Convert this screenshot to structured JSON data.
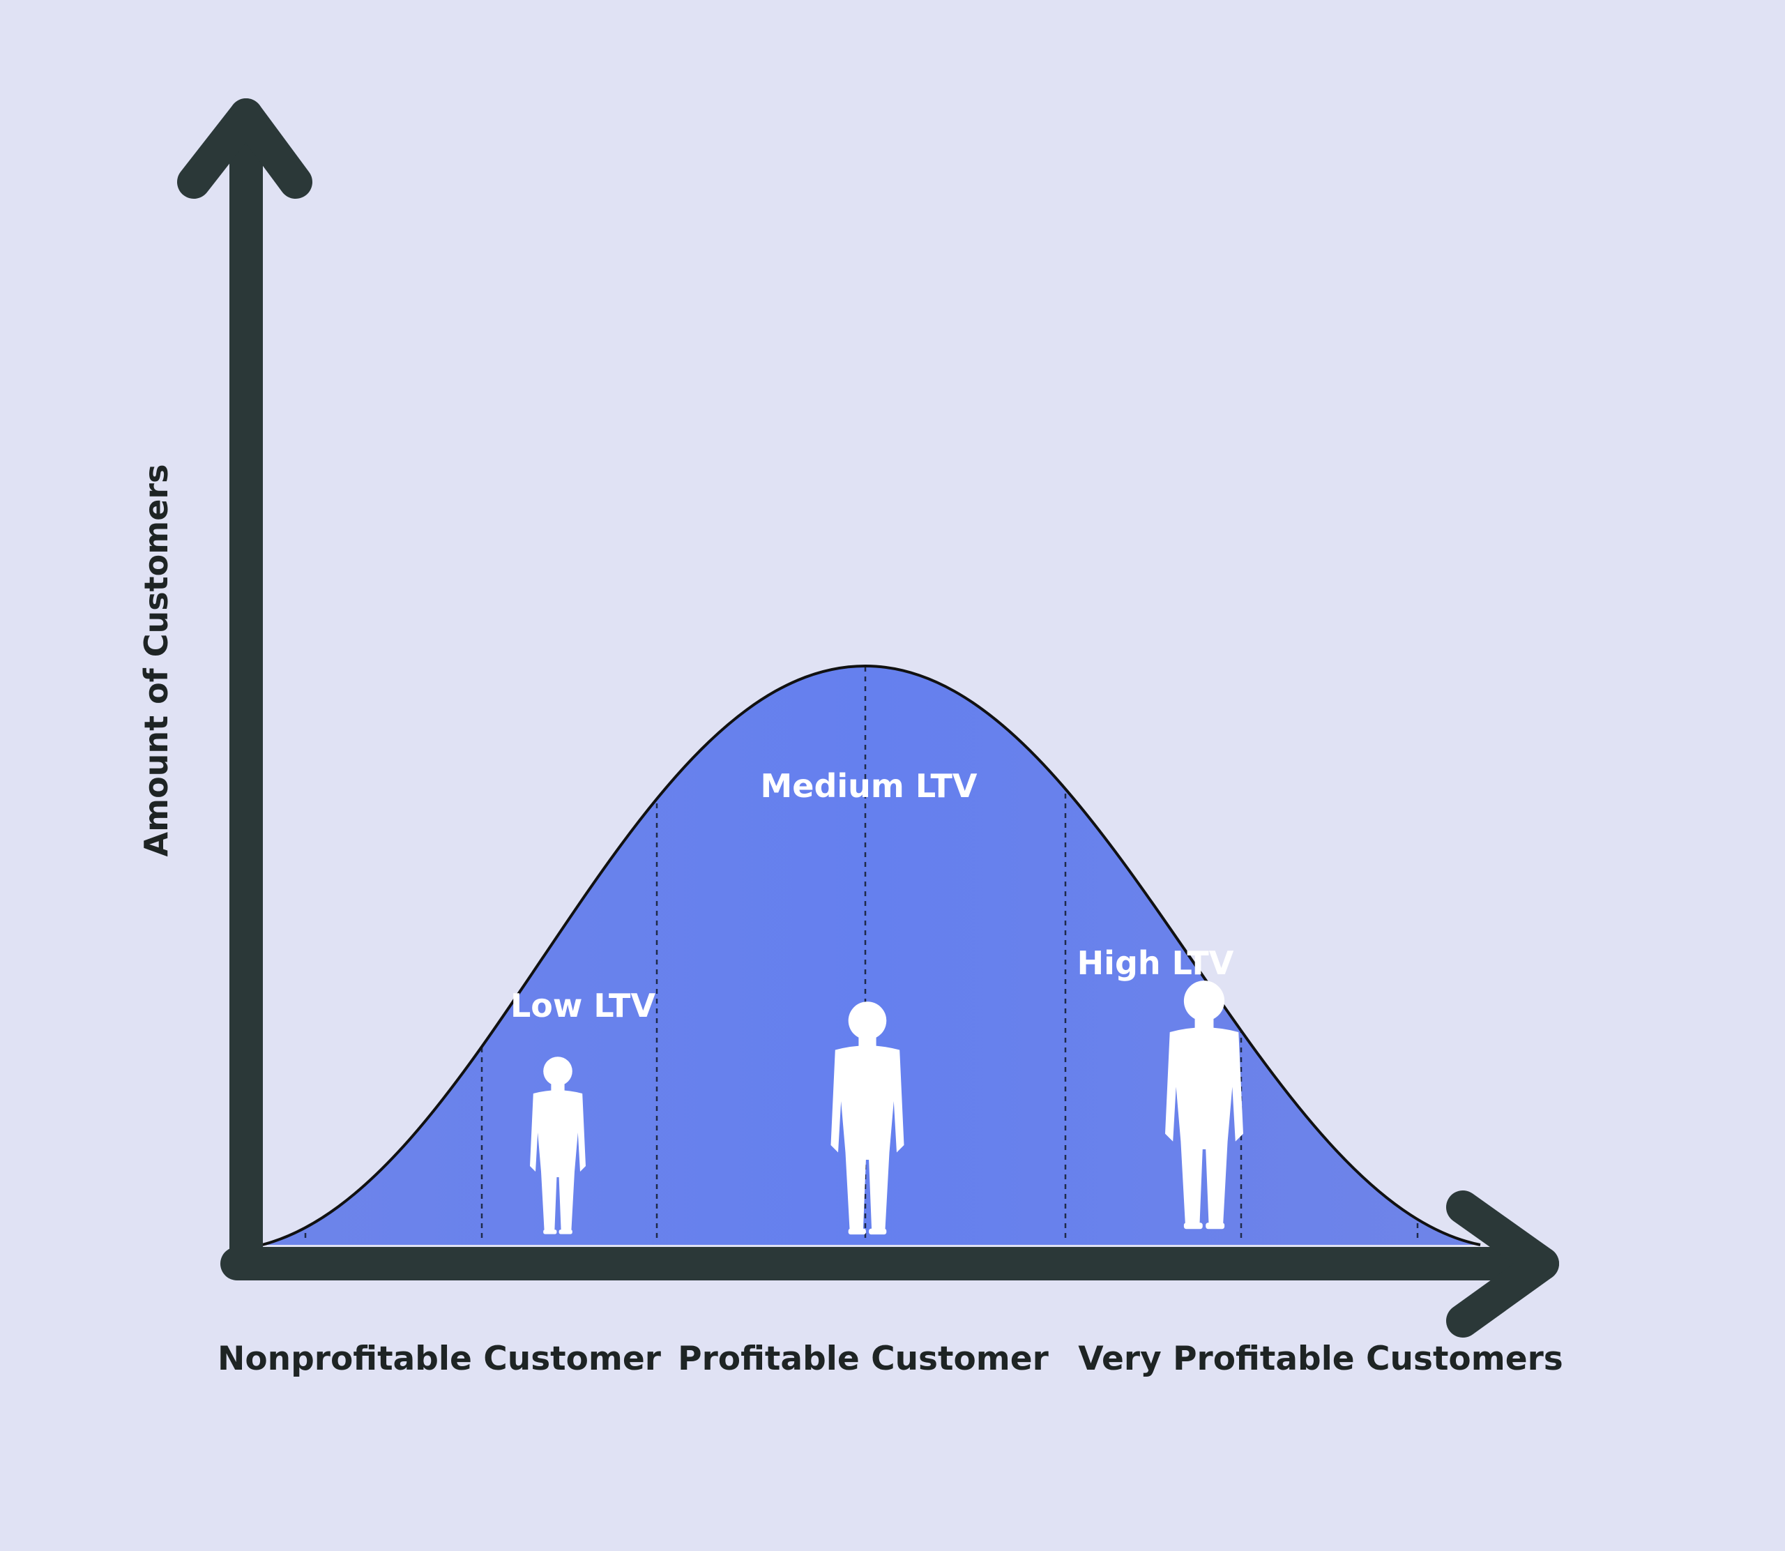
{
  "y_axis_label": "Amount of Customers",
  "regions": [
    {
      "label": "Low LTV"
    },
    {
      "label": "Medium LTV"
    },
    {
      "label": "High LTV"
    }
  ],
  "x_labels": [
    "Nonprofitable Customer",
    "Profitable Customer",
    "Very Profitable Customers"
  ]
}
